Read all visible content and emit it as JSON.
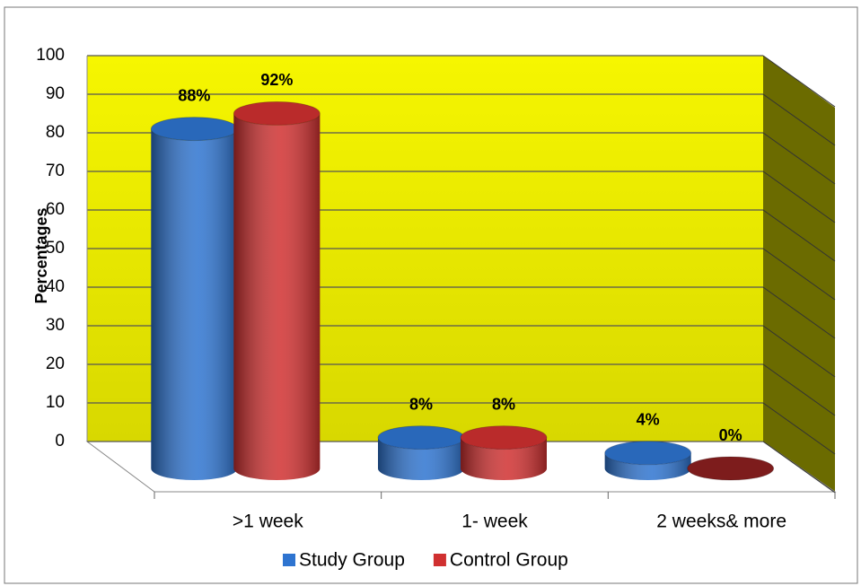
{
  "chart_data": {
    "type": "bar3d-cylinder",
    "y_label": "Percentages",
    "categories": [
      ">1 week",
      "1- week",
      "2 weeks& more"
    ],
    "series": [
      {
        "name": "Study Group",
        "color": "#2e74d0",
        "values": [
          88,
          8,
          4
        ],
        "value_labels": [
          "88%",
          "8%",
          "4%"
        ]
      },
      {
        "name": "Control Group",
        "color": "#d03030",
        "values": [
          92,
          8,
          0
        ],
        "value_labels": [
          "92%",
          "8%",
          "0%"
        ]
      }
    ],
    "ylim": [
      0,
      100
    ],
    "yticks": [
      0,
      10,
      20,
      30,
      40,
      50,
      60,
      70,
      80,
      90,
      100
    ],
    "grid": true,
    "legend": "bottom"
  }
}
